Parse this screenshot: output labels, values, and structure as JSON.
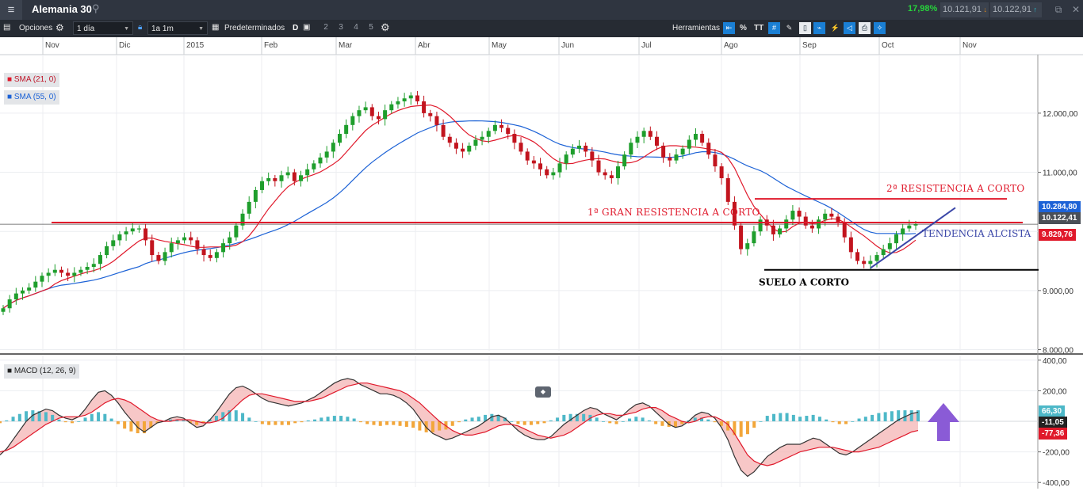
{
  "window": {
    "instrument_title": "Alemania 30",
    "change_pct": "17,98%",
    "bid": "10.121,91",
    "ask": "10.122,91"
  },
  "toolbar": {
    "options_label": "Opciones",
    "interval_value": "1 día",
    "range_value": "1a 1m",
    "presets_label": "Predeterminados",
    "preset_d": "D",
    "preset_numbers": [
      "2",
      "3",
      "4",
      "5"
    ],
    "tools_label": "Herramientas",
    "percent_label": "%",
    "text_tool_label": "TT"
  },
  "chart_data": [
    {
      "type": "candlestick",
      "title": "",
      "x_tick_labels": [
        "Nov",
        "Dic",
        "2015",
        "Feb",
        "Mar",
        "Abr",
        "May",
        "Jun",
        "Jul",
        "Ago",
        "Sep",
        "Oct",
        "Nov"
      ],
      "y_tick_labels": [
        "12.000,00",
        "11.000,00",
        "9.000,00",
        "8.000,00"
      ],
      "y_range": [
        7980,
        12990
      ],
      "grid": true,
      "series": [
        {
          "name": "SMA (21, 0)",
          "color": "#e0192b"
        },
        {
          "name": "SMA (55, 0)",
          "color": "#1c62d6"
        }
      ],
      "candle_closes": [
        8700,
        8850,
        8950,
        9000,
        9050,
        9150,
        9250,
        9300,
        9350,
        9300,
        9250,
        9300,
        9350,
        9400,
        9450,
        9600,
        9750,
        9850,
        9950,
        10000,
        10050,
        10050,
        9850,
        9600,
        9500,
        9650,
        9800,
        9850,
        9900,
        9850,
        9700,
        9600,
        9550,
        9650,
        9800,
        9900,
        10100,
        10300,
        10500,
        10700,
        10850,
        10900,
        10850,
        10950,
        11000,
        10850,
        10950,
        11050,
        11150,
        11250,
        11350,
        11500,
        11650,
        11800,
        11950,
        12050,
        12100,
        11950,
        11900,
        12050,
        12150,
        12200,
        12250,
        12300,
        12200,
        12000,
        11950,
        11800,
        11600,
        11500,
        11400,
        11350,
        11450,
        11550,
        11600,
        11700,
        11800,
        11750,
        11650,
        11500,
        11350,
        11200,
        11150,
        11050,
        10950,
        11000,
        11150,
        11300,
        11400,
        11450,
        11350,
        11200,
        11000,
        10950,
        10900,
        11100,
        11300,
        11500,
        11600,
        11700,
        11600,
        11450,
        11250,
        11200,
        11300,
        11400,
        11550,
        11650,
        11500,
        11300,
        11100,
        10900,
        10500,
        10100,
        9700,
        9800,
        10000,
        10200,
        10100,
        9950,
        10050,
        10200,
        10350,
        10250,
        10100,
        10050,
        10200,
        10300,
        10250,
        10150,
        9900,
        9650,
        9500,
        9450,
        9500,
        9600,
        9700,
        9800,
        9950,
        10050,
        10100,
        10122
      ],
      "annotations": [
        {
          "text": "2ª RESISTENCIA A CORTO",
          "color": "#e0192b",
          "level": 10550
        },
        {
          "text": "1ª GRAN RESISTENCIA A CORTO",
          "color": "#e0192b",
          "level": 10150
        },
        {
          "text": "TENDENCIA ALCISTA",
          "color": "#3b47a8"
        },
        {
          "text": "SUELO A CORTO",
          "color": "#000000",
          "level": 9350
        }
      ],
      "price_tags": [
        {
          "value": "10.284,80",
          "color": "#1c62d6"
        },
        {
          "value": "10.122,41",
          "color": "#4a4f57"
        },
        {
          "value": "9.829,76",
          "color": "#e0192b"
        }
      ]
    },
    {
      "type": "histogram",
      "title": "",
      "series_label": "MACD (12, 26, 9)",
      "y_tick_labels": [
        "400,00",
        "200,00",
        "-200,00",
        "-400,00"
      ],
      "y_range": [
        -430,
        430
      ],
      "grid": true,
      "series": [
        {
          "name": "MACD",
          "color": "#555555"
        },
        {
          "name": "Signal",
          "color": "#e0192b"
        },
        {
          "name": "Histogram",
          "color": "#4db8c8",
          "negative_color": "#f2a63a"
        }
      ],
      "macd_values": [
        -220,
        -180,
        -120,
        -60,
        0,
        40,
        60,
        80,
        70,
        40,
        20,
        10,
        30,
        80,
        140,
        190,
        200,
        170,
        120,
        60,
        10,
        -40,
        -70,
        -40,
        -10,
        0,
        20,
        30,
        20,
        -10,
        -40,
        -30,
        10,
        60,
        120,
        180,
        220,
        230,
        210,
        180,
        150,
        130,
        120,
        110,
        100,
        110,
        120,
        140,
        160,
        190,
        220,
        250,
        270,
        280,
        270,
        240,
        220,
        200,
        180,
        180,
        170,
        150,
        120,
        80,
        20,
        -40,
        -80,
        -100,
        -120,
        -110,
        -90,
        -70,
        -50,
        -30,
        0,
        30,
        40,
        20,
        -20,
        -60,
        -90,
        -110,
        -120,
        -120,
        -100,
        -60,
        -20,
        10,
        40,
        70,
        90,
        80,
        50,
        30,
        10,
        40,
        80,
        110,
        120,
        100,
        60,
        20,
        -20,
        -40,
        -30,
        0,
        40,
        60,
        50,
        20,
        -40,
        -120,
        -230,
        -320,
        -360,
        -330,
        -280,
        -230,
        -200,
        -170,
        -150,
        -150,
        -150,
        -130,
        -110,
        -120,
        -150,
        -180,
        -210,
        -220,
        -200,
        -170,
        -140,
        -110,
        -80,
        -50,
        -20,
        10,
        30,
        50,
        60
      ],
      "signal_values": [
        -200,
        -190,
        -170,
        -140,
        -110,
        -80,
        -50,
        -20,
        0,
        20,
        30,
        30,
        30,
        40,
        60,
        90,
        120,
        140,
        150,
        140,
        120,
        90,
        60,
        30,
        10,
        0,
        0,
        10,
        10,
        10,
        0,
        -10,
        -10,
        0,
        20,
        60,
        100,
        140,
        170,
        180,
        180,
        170,
        160,
        150,
        140,
        130,
        130,
        130,
        140,
        150,
        170,
        190,
        210,
        230,
        240,
        250,
        250,
        240,
        230,
        220,
        210,
        200,
        180,
        150,
        120,
        80,
        40,
        0,
        -30,
        -60,
        -80,
        -90,
        -90,
        -80,
        -70,
        -50,
        -30,
        -20,
        -20,
        -30,
        -50,
        -70,
        -90,
        -100,
        -110,
        -100,
        -90,
        -70,
        -40,
        -10,
        20,
        40,
        50,
        50,
        40,
        40,
        50,
        60,
        80,
        90,
        90,
        70,
        40,
        20,
        0,
        -10,
        0,
        20,
        30,
        30,
        10,
        -20,
        -80,
        -150,
        -220,
        -260,
        -280,
        -290,
        -280,
        -260,
        -240,
        -220,
        -200,
        -190,
        -180,
        -170,
        -170,
        -170,
        -180,
        -190,
        -200,
        -200,
        -190,
        -180,
        -170,
        -150,
        -130,
        -110,
        -90,
        -70,
        -60
      ],
      "price_tags": [
        {
          "value": "66,30",
          "color": "#4db8c8"
        },
        {
          "value": "-11,05",
          "color": "#222222"
        },
        {
          "value": "-77,36",
          "color": "#e0192b"
        }
      ]
    }
  ]
}
